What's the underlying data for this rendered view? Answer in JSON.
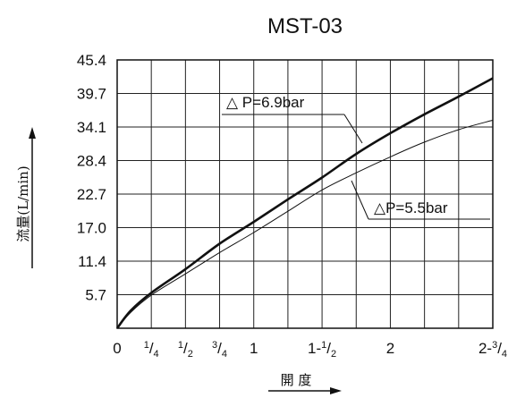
{
  "chart_data": {
    "type": "line",
    "title": "MST-03",
    "xlabel": "開 度",
    "ylabel": "流量(L/min)",
    "ylim": [
      0,
      45.4
    ],
    "y_ticks": [
      "5.7",
      "11.4",
      "17.0",
      "22.7",
      "28.4",
      "34.1",
      "39.7",
      "45.4"
    ],
    "x_ticks": [
      {
        "value": 0,
        "label": "0"
      },
      {
        "value": 0.25,
        "label": "1/4"
      },
      {
        "value": 0.5,
        "label": "1/2"
      },
      {
        "value": 0.75,
        "label": "3/4"
      },
      {
        "value": 1,
        "label": "1"
      },
      {
        "value": 1.5,
        "label": "1-1/2"
      },
      {
        "value": 2,
        "label": "2"
      },
      {
        "value": 2.75,
        "label": "2-3/4"
      }
    ],
    "xlim": [
      0,
      2.75
    ],
    "grid": true,
    "series": [
      {
        "name": "△ P=6.9bar",
        "color": "#111111",
        "x": [
          0,
          0.1,
          0.25,
          0.5,
          0.75,
          1.0,
          1.25,
          1.5,
          1.75,
          2.0,
          2.25,
          2.5,
          2.75
        ],
        "y": [
          0,
          3.0,
          6.0,
          10.0,
          14.3,
          18.0,
          21.8,
          25.5,
          29.5,
          33.0,
          36.2,
          39.2,
          42.3
        ]
      },
      {
        "name": "△P=5.5bar",
        "color": "#111111",
        "x": [
          0,
          0.1,
          0.25,
          0.5,
          0.75,
          1.0,
          1.25,
          1.5,
          1.75,
          2.0,
          2.25,
          2.5,
          2.75
        ],
        "y": [
          0,
          2.7,
          5.6,
          9.2,
          12.8,
          16.2,
          19.8,
          23.4,
          26.3,
          29.0,
          31.5,
          33.6,
          35.2
        ]
      }
    ],
    "annotations": [
      "△ P=6.9bar",
      "△P=5.5bar"
    ]
  }
}
